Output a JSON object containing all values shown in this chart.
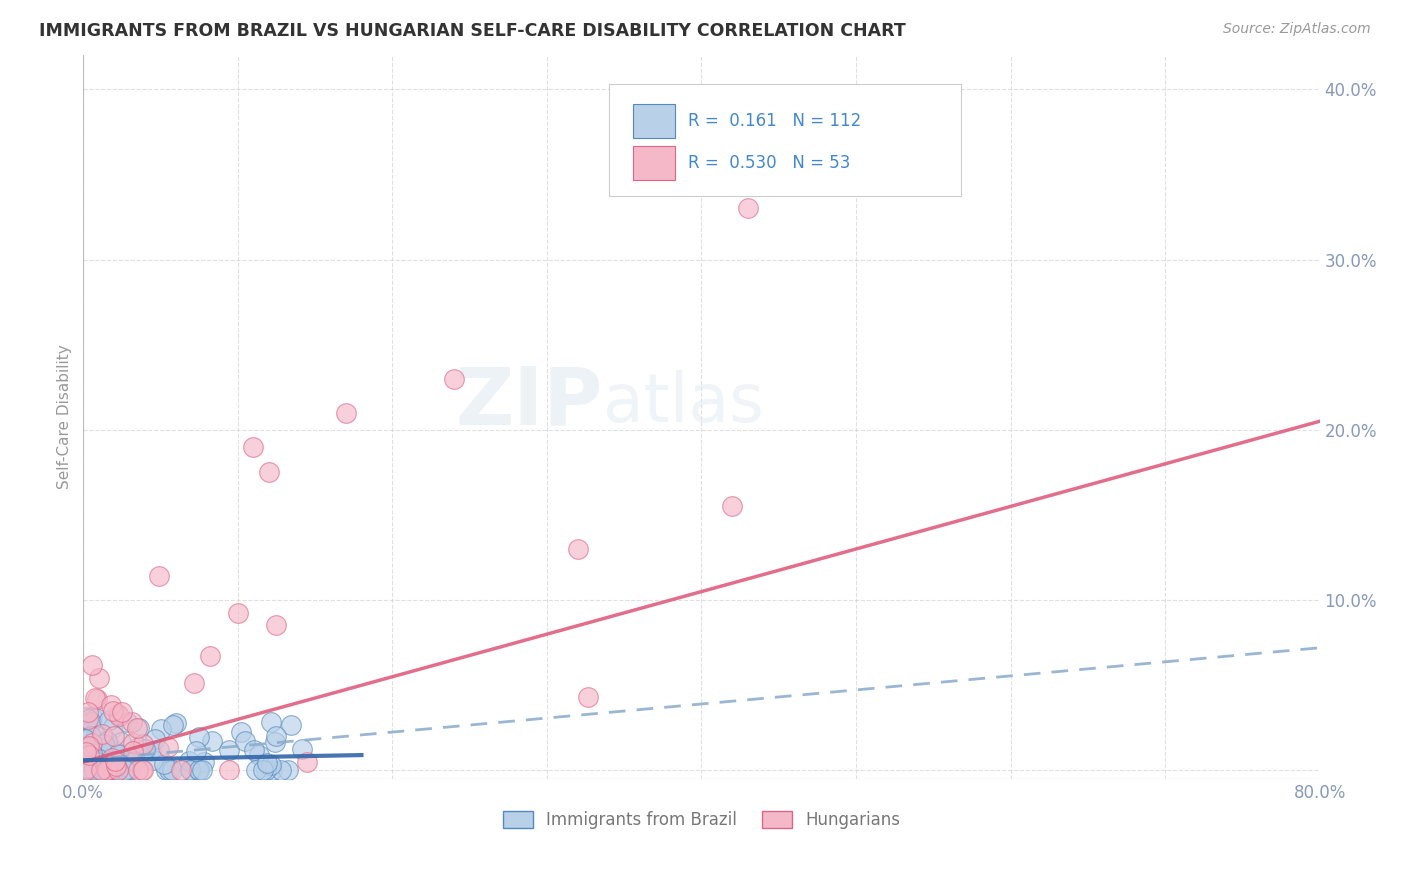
{
  "title": "IMMIGRANTS FROM BRAZIL VS HUNGARIAN SELF-CARE DISABILITY CORRELATION CHART",
  "source_text": "Source: ZipAtlas.com",
  "ylabel": "Self-Care Disability",
  "xlim": [
    0.0,
    0.8
  ],
  "ylim": [
    -0.005,
    0.42
  ],
  "blue_R": 0.161,
  "blue_N": 112,
  "pink_R": 0.53,
  "pink_N": 53,
  "blue_color": "#b8d0e8",
  "blue_edge": "#5588bb",
  "pink_color": "#f4b8c8",
  "pink_edge": "#dd6688",
  "blue_solid_color": "#3366aa",
  "blue_dash_color": "#88aacc",
  "pink_line_color": "#dd5577",
  "background_color": "#ffffff",
  "grid_color": "#cccccc",
  "title_color": "#333333",
  "axis_label_color": "#999999",
  "tick_color": "#8899bb",
  "legend_R_color": "#4488cc",
  "watermark_color": "#dde8f0",
  "blue_solid_trend_x": [
    0.0,
    0.18
  ],
  "blue_solid_trend_y": [
    0.006,
    0.009
  ],
  "blue_dash_trend_x": [
    0.0,
    0.8
  ],
  "blue_dash_trend_y": [
    0.006,
    0.072
  ],
  "pink_trend_x": [
    0.0,
    0.8
  ],
  "pink_trend_y": [
    0.005,
    0.205
  ]
}
